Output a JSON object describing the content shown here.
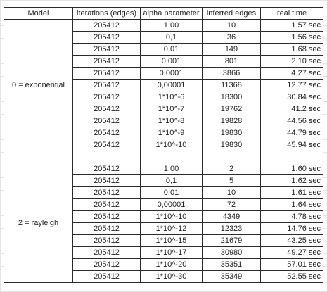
{
  "headers": [
    "Model",
    "iterations (edges)",
    "alpha parameter",
    "inferred edges",
    "real time"
  ],
  "groups": [
    {
      "model": "0 = exponential",
      "rows": [
        {
          "iterations": "205412",
          "alpha": "1,00",
          "edges": "10",
          "time": "1.57 sec"
        },
        {
          "iterations": "205412",
          "alpha": "0,1",
          "edges": "36",
          "time": "1.56 sec"
        },
        {
          "iterations": "205412",
          "alpha": "0,01",
          "edges": "149",
          "time": "1.68 sec"
        },
        {
          "iterations": "205412",
          "alpha": "0,001",
          "edges": "801",
          "time": "2.10 sec"
        },
        {
          "iterations": "205412",
          "alpha": "0,0001",
          "edges": "3866",
          "time": "4.27 sec"
        },
        {
          "iterations": "205412",
          "alpha": "0,00001",
          "edges": "11368",
          "time": "12.77 sec"
        },
        {
          "iterations": "205412",
          "alpha": "1*10^-6",
          "edges": "18300",
          "time": "30.84 sec"
        },
        {
          "iterations": "205412",
          "alpha": "1*10^-7",
          "edges": "19762",
          "time": "41.2 sec"
        },
        {
          "iterations": "205412",
          "alpha": "1*10^-8",
          "edges": "19828",
          "time": "44.56 sec"
        },
        {
          "iterations": "205412",
          "alpha": "1*10^-9",
          "edges": "19830",
          "time": "44.79 sec"
        },
        {
          "iterations": "205412",
          "alpha": "1*10^-10",
          "edges": "19830",
          "time": "45.94 sec"
        }
      ]
    },
    {
      "model": "2 = rayleigh",
      "rows": [
        {
          "iterations": "205412",
          "alpha": "1,00",
          "edges": "2",
          "time": "1.60 sec"
        },
        {
          "iterations": "205412",
          "alpha": "0,1",
          "edges": "5",
          "time": "1.62 sec"
        },
        {
          "iterations": "205412",
          "alpha": "0,01",
          "edges": "10",
          "time": "1.61 sec"
        },
        {
          "iterations": "205412",
          "alpha": "0,00001",
          "edges": "72",
          "time": "1.64 sec"
        },
        {
          "iterations": "205412",
          "alpha": "1*10^-10",
          "edges": "4349",
          "time": "4.78 sec"
        },
        {
          "iterations": "205412",
          "alpha": "1*10^-12",
          "edges": "12323",
          "time": "14.76 sec"
        },
        {
          "iterations": "205412",
          "alpha": "1*10^-15",
          "edges": "21679",
          "time": "43.25 sec"
        },
        {
          "iterations": "205412",
          "alpha": "1*10^-17",
          "edges": "30980",
          "time": "49.27 sec"
        },
        {
          "iterations": "205412",
          "alpha": "1*10^-20",
          "edges": "35351",
          "time": "57.01 sec"
        },
        {
          "iterations": "205412",
          "alpha": "1*10^-30",
          "edges": "35349",
          "time": "52.55 sec"
        }
      ]
    }
  ]
}
